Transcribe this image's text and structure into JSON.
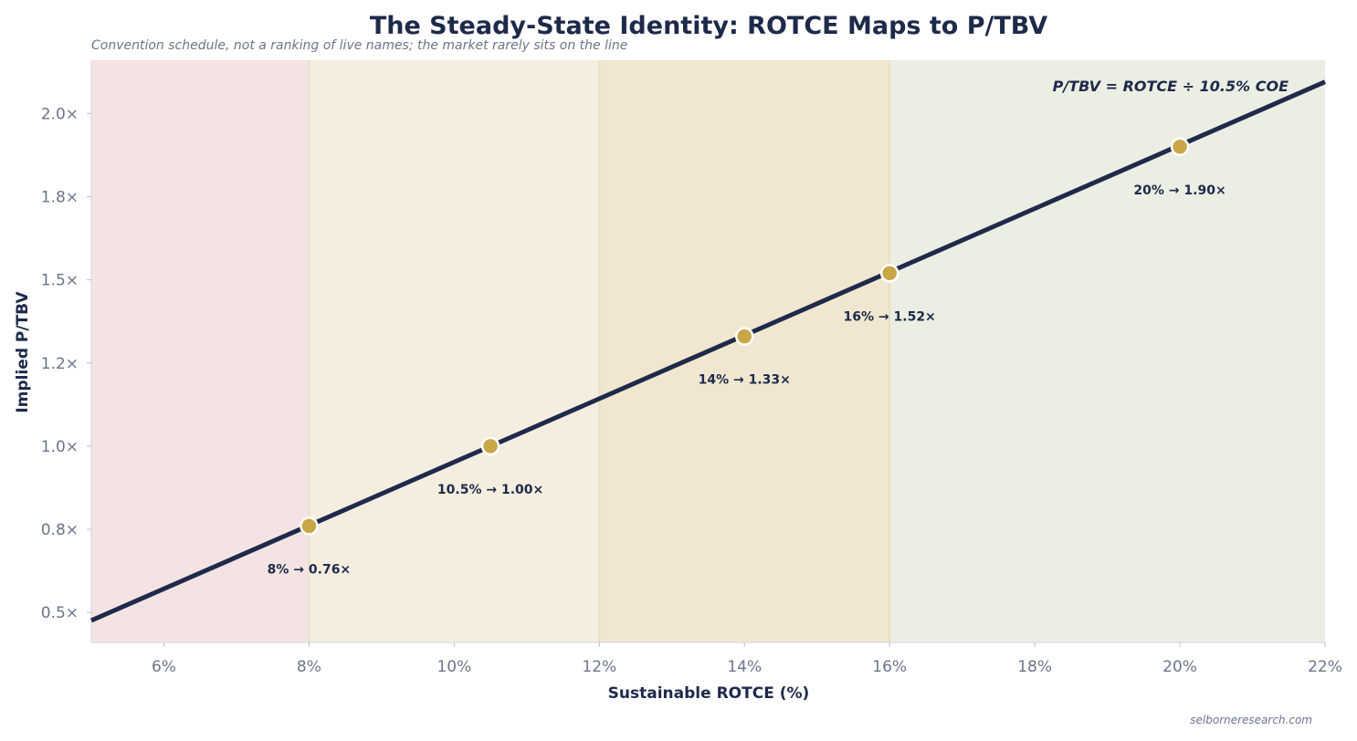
{
  "chart_data": {
    "type": "line",
    "title": "The Steady-State Identity: ROTCE Maps to P/TBV",
    "subtitle": "Convention schedule, not a ranking of live names; the market rarely sits on the line",
    "xlabel": "Sustainable ROTCE (%)",
    "ylabel": "Implied P/TBV",
    "xlim": [
      5,
      22
    ],
    "ylim": [
      0.41,
      2.16
    ],
    "x_ticks": [
      6,
      8,
      10,
      12,
      14,
      16,
      18,
      20,
      22
    ],
    "x_tick_labels": [
      "6%",
      "8%",
      "10%",
      "12%",
      "14%",
      "16%",
      "18%",
      "20%",
      "22%"
    ],
    "y_ticks": [
      0.5,
      0.75,
      1.0,
      1.25,
      1.5,
      1.75,
      2.0
    ],
    "y_tick_labels": [
      "0.5×",
      "0.8×",
      "1.0×",
      "1.2×",
      "1.5×",
      "1.8×",
      "2.0×"
    ],
    "grid": false,
    "cost_of_equity": 10.5,
    "line": {
      "x": [
        5,
        22
      ],
      "y": [
        0.476,
        2.095
      ],
      "color": "#1f2a4b"
    },
    "points": [
      {
        "x": 8,
        "y": 0.76,
        "label": "8% → 0.76×"
      },
      {
        "x": 10.5,
        "y": 1.0,
        "label": "10.5% → 1.00×"
      },
      {
        "x": 14,
        "y": 1.33,
        "label": "14% → 1.33×"
      },
      {
        "x": 16,
        "y": 1.52,
        "label": "16% → 1.52×"
      },
      {
        "x": 20,
        "y": 1.9,
        "label": "20% → 1.90×"
      }
    ],
    "point_color": "#c9a646",
    "bands": [
      {
        "from": 5,
        "to": 8,
        "color": "#f3e4e3"
      },
      {
        "from": 8,
        "to": 12,
        "color": "#f5eee0"
      },
      {
        "from": 12,
        "to": 16,
        "color": "#f1e7d1"
      },
      {
        "from": 16,
        "to": 22,
        "color": "#ebeee2"
      }
    ],
    "annotation": "P/TBV = ROTCE ÷ 10.5% COE"
  },
  "footer": "selborneresearch.com"
}
